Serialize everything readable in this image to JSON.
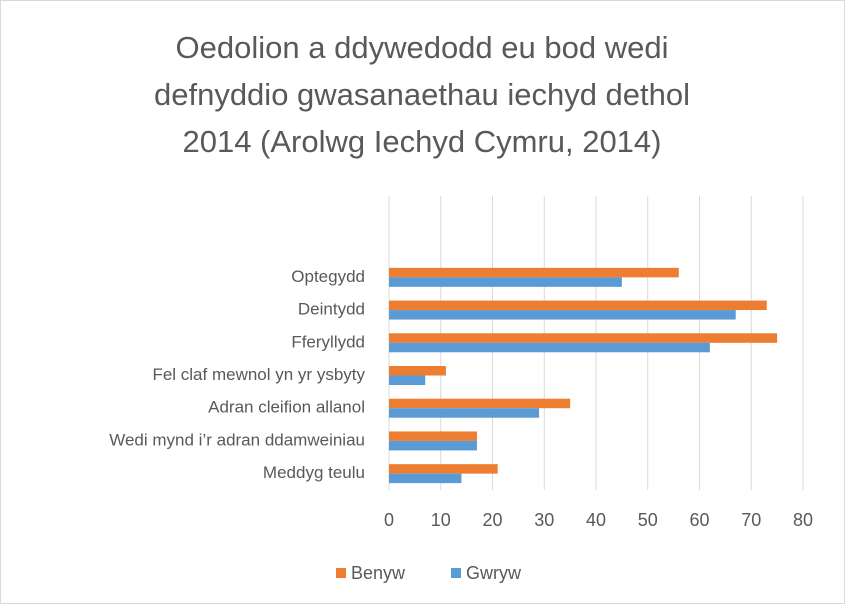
{
  "chart_data": {
    "type": "hbar",
    "title": [
      "Oedolion a ddywedodd eu bod wedi",
      "defnyddio gwasanaethau iechyd dethol",
      "2014 (Arolwg Iechyd Cymru, 2014)"
    ],
    "categories": [
      "Optegydd",
      "Deintydd",
      "Fferyllydd",
      "Fel claf mewnol yn yr ysbyty",
      "Adran cleifion allanol",
      "Wedi mynd i’r adran ddamweiniau",
      "Meddyg teulu"
    ],
    "series": [
      {
        "name": "Benyw",
        "color": "#ed7d31",
        "values": [
          56,
          73,
          75,
          11,
          35,
          17,
          21
        ]
      },
      {
        "name": "Gwryw",
        "color": "#5b9bd5",
        "values": [
          45,
          67,
          62,
          7,
          29,
          17,
          14
        ]
      }
    ],
    "xlim": [
      0,
      80
    ],
    "xticks": [
      0,
      10,
      20,
      30,
      40,
      50,
      60,
      70,
      80
    ],
    "grid": true,
    "legend": "bottom"
  }
}
